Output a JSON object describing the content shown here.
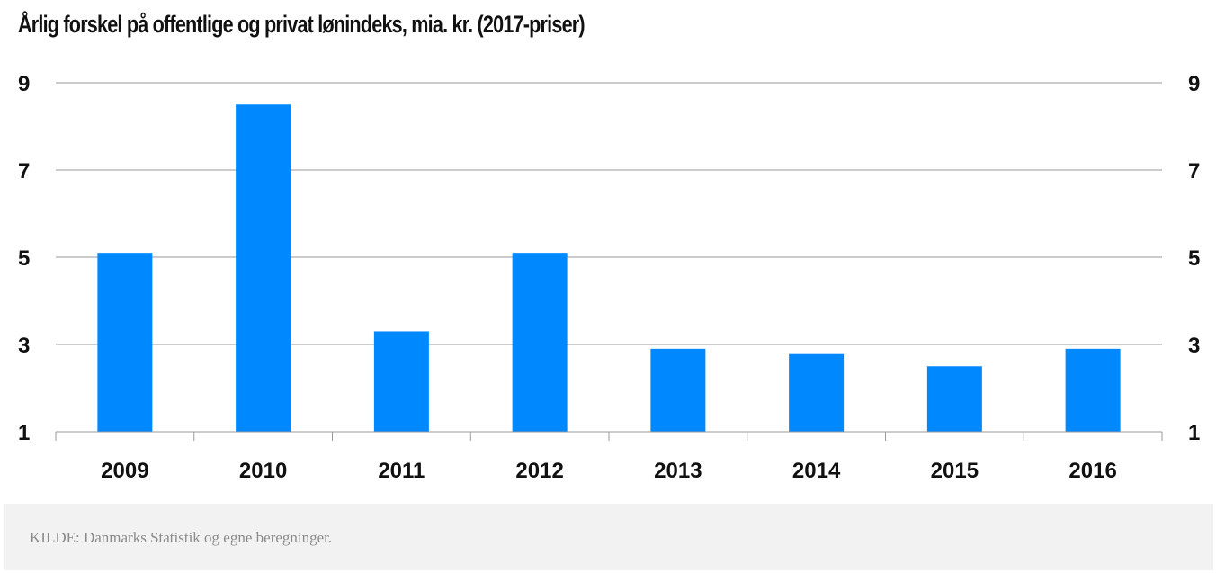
{
  "chart_data": {
    "type": "bar",
    "title": "Årlig forskel på offentlige og privat lønindeks, mia. kr. (2017-priser)",
    "categories": [
      "2009",
      "2010",
      "2011",
      "2012",
      "2013",
      "2014",
      "2015",
      "2016"
    ],
    "values": [
      5.1,
      8.5,
      3.3,
      5.1,
      2.9,
      2.8,
      2.5,
      2.9
    ],
    "ylim": [
      1,
      9
    ],
    "yticks": [
      "1",
      "3",
      "5",
      "7",
      "9"
    ],
    "xlabel": "",
    "ylabel": "",
    "grid": true,
    "bar_color": "#0088ff",
    "dual_y_axis": true
  },
  "source": {
    "text": "KILDE: Danmarks Statistik og egne beregninger."
  }
}
